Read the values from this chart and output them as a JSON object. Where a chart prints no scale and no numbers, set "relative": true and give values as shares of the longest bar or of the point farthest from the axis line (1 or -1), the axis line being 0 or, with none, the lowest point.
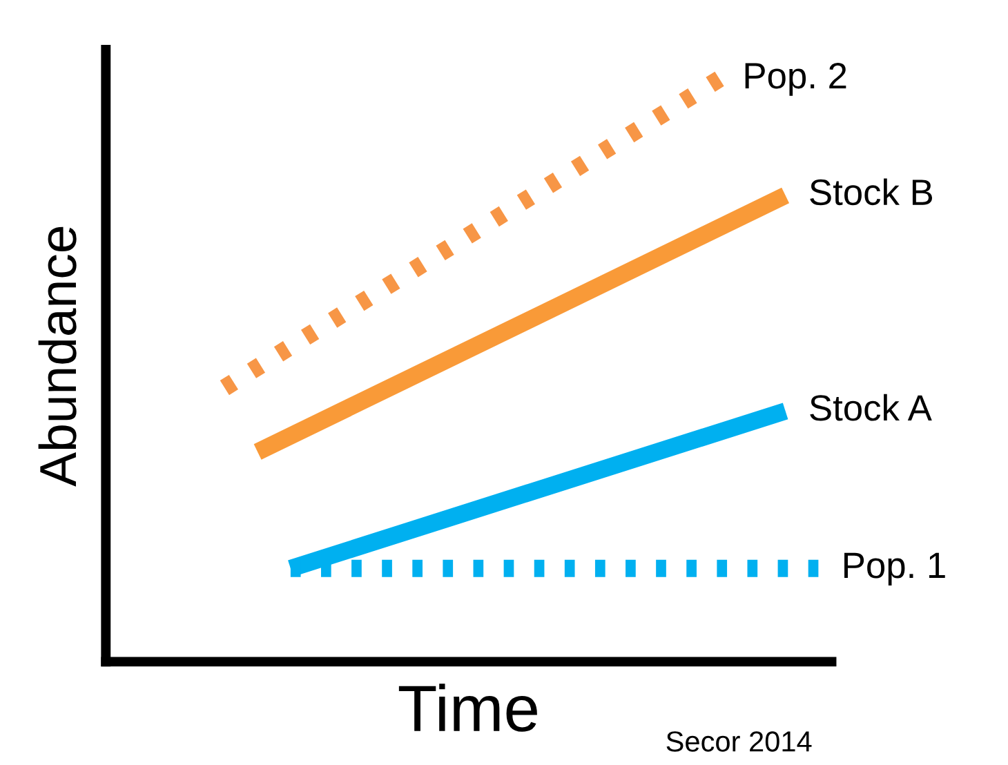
{
  "chart_data": {
    "type": "line",
    "relative": true,
    "xlabel": "Time",
    "ylabel": "Abundance",
    "annotations": [
      "Secor 2014"
    ],
    "categories": [
      null,
      null,
      null,
      null,
      null,
      null,
      null,
      null,
      null,
      null,
      null,
      null,
      null,
      null,
      null,
      null,
      null,
      null,
      null,
      null,
      null
    ],
    "series": [
      {
        "name": "Pop. 2",
        "color": "#f79646",
        "line_style": "dotted",
        "values": [
          null,
          null,
          0.47,
          null,
          null,
          null,
          null,
          null,
          null,
          null,
          null,
          null,
          null,
          null,
          null,
          null,
          null,
          1.0,
          null,
          null,
          null
        ]
      },
      {
        "name": "Stock B",
        "color": "#f99a38",
        "line_style": "solid",
        "values": [
          null,
          null,
          null,
          0.36,
          null,
          null,
          null,
          null,
          null,
          null,
          null,
          null,
          null,
          null,
          null,
          null,
          null,
          null,
          null,
          0.8,
          null
        ]
      },
      {
        "name": "Stock A",
        "color": "#00b0f0",
        "line_style": "solid",
        "values": [
          null,
          null,
          null,
          null,
          0.16,
          null,
          null,
          null,
          null,
          null,
          null,
          null,
          null,
          null,
          null,
          null,
          null,
          null,
          null,
          0.43,
          null
        ]
      },
      {
        "name": "Pop. 1",
        "color": "#00b0f0",
        "line_style": "dotted",
        "values": [
          null,
          null,
          null,
          null,
          0.16,
          null,
          null,
          null,
          null,
          null,
          null,
          null,
          null,
          null,
          null,
          null,
          null,
          null,
          null,
          null,
          0.16
        ]
      }
    ]
  }
}
